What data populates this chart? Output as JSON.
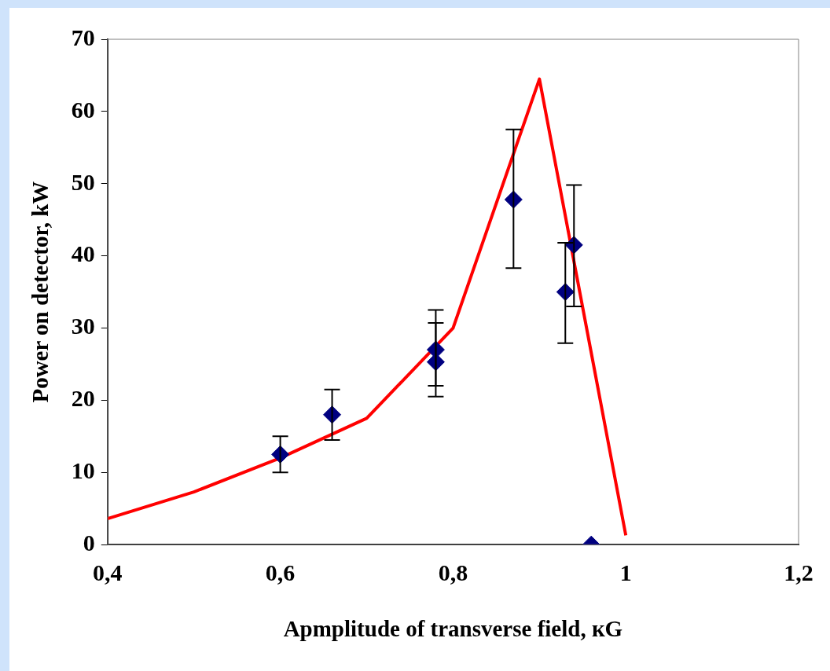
{
  "chart_data": {
    "type": "scatter",
    "xlabel": "Apmplitude of transverse field, кG",
    "ylabel": "Power on detector, kW",
    "xlim": [
      0.4,
      1.2
    ],
    "xticks": [
      {
        "value": 0.4,
        "label": "0,4"
      },
      {
        "value": 0.6,
        "label": "0,6"
      },
      {
        "value": 0.8,
        "label": "0,8"
      },
      {
        "value": 1,
        "label": "1"
      },
      {
        "value": 1.2,
        "label": "1,2"
      }
    ],
    "ylim": [
      0,
      70
    ],
    "yticks": [
      0,
      10,
      20,
      30,
      40,
      50,
      60,
      70
    ],
    "grid": false,
    "legend": false,
    "series": [
      {
        "marker": "diamond",
        "color": "#000080",
        "x": [
          0.6,
          0.66,
          0.78,
          0.78,
          0.87,
          0.93,
          0.94,
          0.96
        ],
        "values": [
          12.5,
          18,
          27,
          25.3,
          47.8,
          35,
          41.5,
          0
        ],
        "errors": [
          [
            10,
            15
          ],
          [
            14.5,
            21.5
          ],
          [
            22,
            32.5
          ],
          [
            20.5,
            30.7
          ],
          [
            38.3,
            57.5
          ],
          [
            27.9,
            41.8
          ],
          [
            33,
            49.8
          ],
          null
        ]
      },
      {
        "type": "line",
        "marker": "none",
        "line_style": "solid",
        "color": "#ff0000",
        "x": [
          0.4,
          0.5,
          0.6,
          0.7,
          0.8,
          0.9,
          1.0
        ],
        "values": [
          3.6,
          7.3,
          12,
          17.5,
          30,
          64.5,
          1.3
        ]
      }
    ]
  }
}
